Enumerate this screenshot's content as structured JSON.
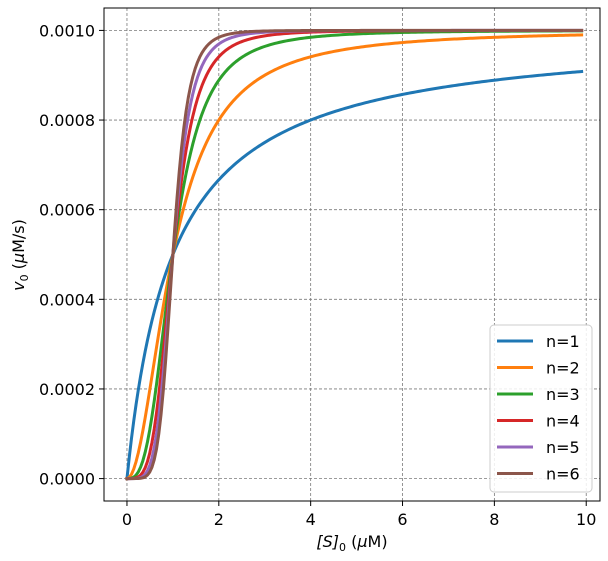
{
  "chart_data": {
    "type": "line",
    "title": "",
    "xlabel": "[S]₀ (μM)",
    "ylabel": "v₀ (μM/s)",
    "xlim": [
      -0.5,
      10.3
    ],
    "ylim": [
      -5e-05,
      0.00105
    ],
    "grid": true,
    "x_ticks": [
      0,
      2,
      4,
      6,
      8,
      10
    ],
    "x_tick_labels": [
      "0",
      "2",
      "4",
      "6",
      "8",
      "10"
    ],
    "y_ticks": [
      0.0,
      0.0002,
      0.0004,
      0.0006,
      0.0008,
      0.001
    ],
    "y_tick_labels": [
      "0.0000",
      "0.0002",
      "0.0004",
      "0.0006",
      "0.0008",
      "0.0010"
    ],
    "legend_position": "bottom-right",
    "model": {
      "vmax": 0.001,
      "K": 1.0,
      "x_range": [
        0,
        9.9
      ]
    },
    "series": [
      {
        "name": "n=1",
        "hill_n": 1,
        "color": "#1f77b4"
      },
      {
        "name": "n=2",
        "hill_n": 2,
        "color": "#ff7f0e"
      },
      {
        "name": "n=3",
        "hill_n": 3,
        "color": "#2ca02c"
      },
      {
        "name": "n=4",
        "hill_n": 4,
        "color": "#d62728"
      },
      {
        "name": "n=5",
        "hill_n": 5,
        "color": "#9467bd"
      },
      {
        "name": "n=6",
        "hill_n": 6,
        "color": "#8c564b"
      }
    ]
  }
}
